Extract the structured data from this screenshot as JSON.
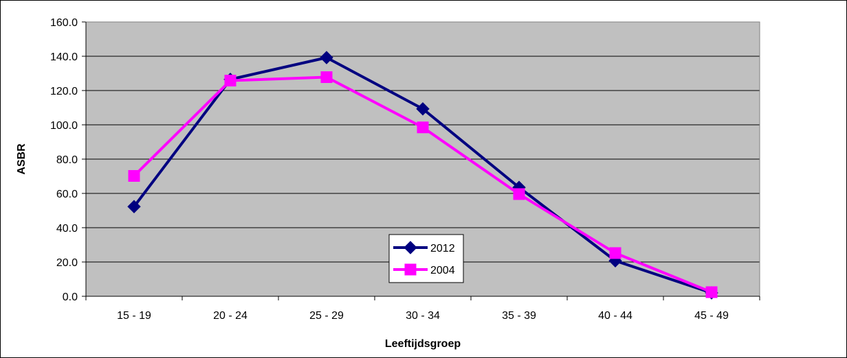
{
  "chart_data": {
    "type": "line",
    "title": "",
    "xlabel": "Leeftijdsgroep",
    "ylabel": "ASBR",
    "categories": [
      "15 - 19",
      "20 - 24",
      "25 - 29",
      "30 - 34",
      "35 - 39",
      "40 - 44",
      "45 - 49"
    ],
    "ylim": [
      0,
      160
    ],
    "yticks": [
      "0.0",
      "20.0",
      "40.0",
      "60.0",
      "80.0",
      "100.0",
      "120.0",
      "140.0",
      "160.0"
    ],
    "grid": true,
    "legend_position": "center",
    "series": [
      {
        "name": "2012",
        "values": [
          52.3,
          126.5,
          139.2,
          109.3,
          63.5,
          20.7,
          2.0
        ],
        "color": "#000080",
        "marker": "diamond"
      },
      {
        "name": "2004",
        "values": [
          70.2,
          125.8,
          127.8,
          98.5,
          59.6,
          25.2,
          2.4
        ],
        "color": "#FF00FF",
        "marker": "square"
      }
    ],
    "plot_background": "#C0C0C0"
  }
}
